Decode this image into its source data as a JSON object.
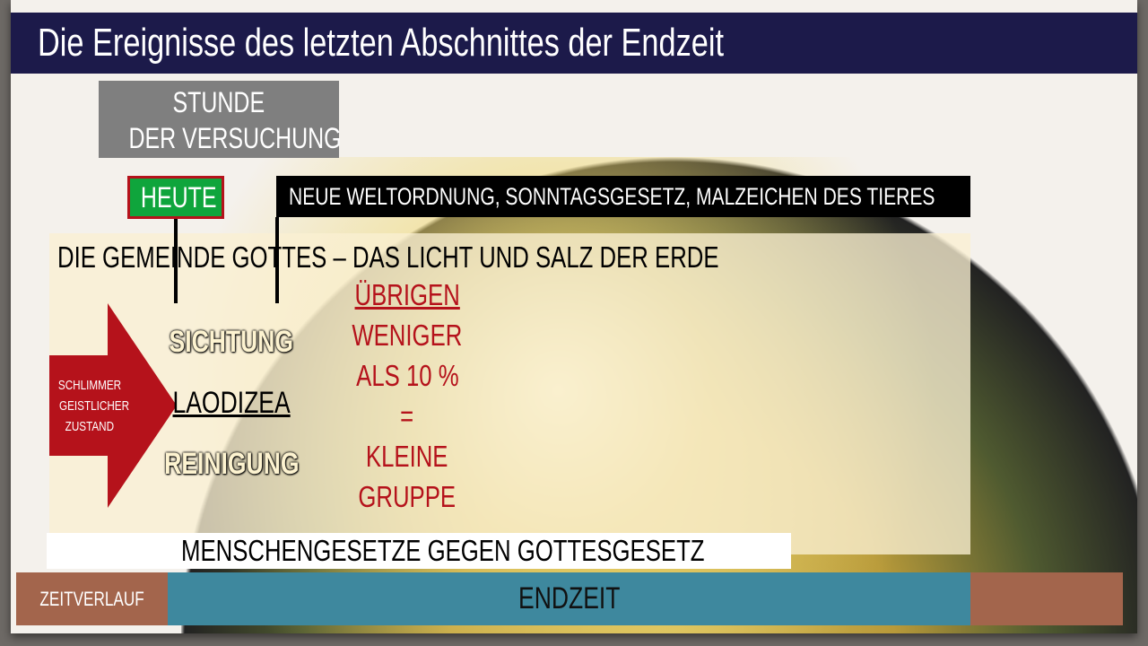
{
  "title": "Die Ereignisse des letzten Abschnittes der Endzeit",
  "stunde": [
    "STUNDE",
    "DER VERSUCHUNG"
  ],
  "heute": "HEUTE",
  "neue_weltordnung": "NEUE WELTORDNUNG, SONNTAGSGESETZ, MALZEICHEN DES TIERES",
  "gemeinde": "DIE GEMEINDE GOTTES – DAS LICHT UND SALZ DER ERDE",
  "arrow_text": [
    "SCHLIMMER",
    "GEISTLICHER",
    "ZUSTAND"
  ],
  "sichtung": "SICHTUNG",
  "laodizea": "LAODIZEA",
  "reinigung": "REINIGUNG",
  "uebrigen": [
    "ÜBRIGEN",
    "WENIGER",
    "ALS 10 %",
    "=",
    "KLEINE",
    "GRUPPE"
  ],
  "menschengesetze": "MENSCHENGESETZE GEGEN GOTTESGESETZ",
  "timeline": {
    "label": "ZEITVERLAUF",
    "endzeit": "ENDZEIT"
  },
  "colors": {
    "title_bg": "#1c1a4a",
    "heute_bg": "#0fa53c",
    "red": "#b5121b",
    "teal": "#3e889e",
    "brown": "#a3654c"
  }
}
